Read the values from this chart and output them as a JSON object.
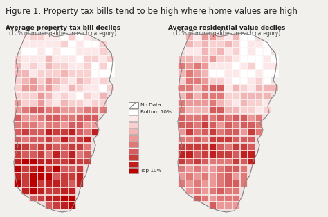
{
  "title": "Figure 1. Property tax bills tend to be high where home values are high",
  "title_fontsize": 8.5,
  "subtitle_left": "Average property tax bill deciles",
  "subtitle_left2": "(10% of municipalities in each category)",
  "subtitle_right": "Average residential value deciles",
  "subtitle_right2": "(10% of municipalities in each category)",
  "subtitle_fontsize": 6.5,
  "subtitle2_fontsize": 5.5,
  "legend_labels": [
    "No Data",
    "Bottom 10%",
    "",
    "",
    "",
    "",
    "",
    "",
    "",
    "",
    "Top 10%"
  ],
  "legend_colors": [
    "hatch",
    "#ffffff",
    "#fce8e8",
    "#f8d0d0",
    "#f2b5b5",
    "#eb9898",
    "#e07878",
    "#d45c5c",
    "#c83c3c",
    "#bf1f1f",
    "#bb0000"
  ],
  "fig_bg": "#f2f0ed",
  "map_bg": "#ffffff",
  "border_color": "#aaaaaa",
  "muni_border": "#cccccc"
}
